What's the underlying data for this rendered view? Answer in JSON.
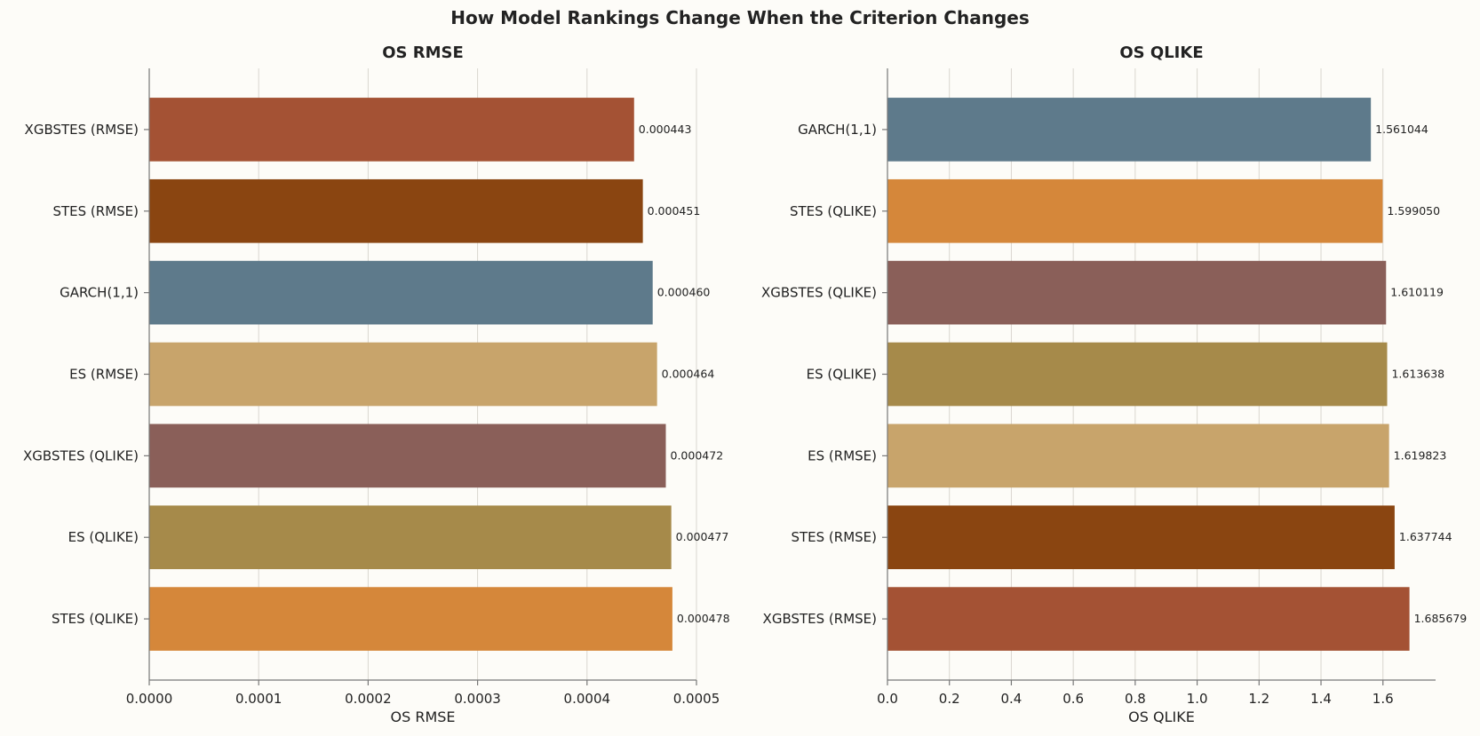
{
  "title": "How Model Rankings Change When the Criterion Changes",
  "colors": {
    "XGBSTES (RMSE)": "#a45234",
    "STES (RMSE)": "#8a4511",
    "GARCH(1,1)": "#5e7a8b",
    "ES (RMSE)": "#c8a46b",
    "XGBSTES (QLIKE)": "#8a5f59",
    "ES (QLIKE)": "#a68a4a",
    "STES (QLIKE)": "#d5873a"
  },
  "chart_data": [
    {
      "type": "bar",
      "orientation": "horizontal",
      "title": "OS RMSE",
      "xlabel": "OS RMSE",
      "ylabel": "",
      "xlim": [
        0,
        0.0005
      ],
      "xticks": [
        0.0,
        0.0001,
        0.0002,
        0.0003,
        0.0004,
        0.0005
      ],
      "xtick_labels": [
        "0.0000",
        "0.0001",
        "0.0002",
        "0.0003",
        "0.0004",
        "0.0005"
      ],
      "categories": [
        "XGBSTES (RMSE)",
        "STES (RMSE)",
        "GARCH(1,1)",
        "ES (RMSE)",
        "XGBSTES (QLIKE)",
        "ES (QLIKE)",
        "STES (QLIKE)"
      ],
      "values": [
        0.000443,
        0.000451,
        0.00046,
        0.000464,
        0.000472,
        0.000477,
        0.000478
      ],
      "value_labels": [
        "0.000443",
        "0.000451",
        "0.000460",
        "0.000464",
        "0.000472",
        "0.000477",
        "0.000478"
      ],
      "grid": true
    },
    {
      "type": "bar",
      "orientation": "horizontal",
      "title": "OS QLIKE",
      "xlabel": "OS QLIKE",
      "ylabel": "",
      "xlim": [
        0,
        1.77
      ],
      "xticks": [
        0.0,
        0.2,
        0.4,
        0.6,
        0.8,
        1.0,
        1.2,
        1.4,
        1.6
      ],
      "xtick_labels": [
        "0.0",
        "0.2",
        "0.4",
        "0.6",
        "0.8",
        "1.0",
        "1.2",
        "1.4",
        "1.6"
      ],
      "categories": [
        "GARCH(1,1)",
        "STES (QLIKE)",
        "XGBSTES (QLIKE)",
        "ES (QLIKE)",
        "ES (RMSE)",
        "STES (RMSE)",
        "XGBSTES (RMSE)"
      ],
      "values": [
        1.561044,
        1.59905,
        1.610119,
        1.613638,
        1.619823,
        1.637744,
        1.685679
      ],
      "value_labels": [
        "1.561044",
        "1.599050",
        "1.610119",
        "1.613638",
        "1.619823",
        "1.637744",
        "1.685679"
      ],
      "grid": true
    }
  ]
}
